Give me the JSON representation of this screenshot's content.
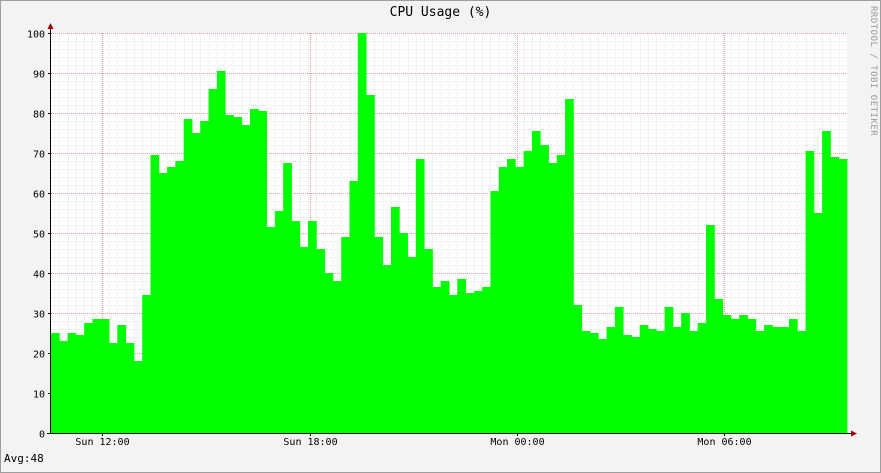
{
  "title": "CPU Usage (%)",
  "watermark": "RRDTOOL / TOBI OETIKER",
  "footer": {
    "avg_text": "Avg:48"
  },
  "colors": {
    "area": "#00ff00",
    "grid_major": "#e8a0a0",
    "grid_minor": "#e6e6e6",
    "background": "#ffffff",
    "canvas": "#f3f3f3",
    "axis": "#000000",
    "arrow": "#a00000"
  },
  "chart_data": {
    "type": "area",
    "title": "CPU Usage (%)",
    "xlabel": "",
    "ylabel": "",
    "ylim": [
      0,
      100
    ],
    "yticks": [
      0,
      10,
      20,
      30,
      40,
      50,
      60,
      70,
      80,
      90,
      100
    ],
    "xtick_labels": [
      {
        "label": "Sun 12:00",
        "bucket": 6.2
      },
      {
        "label": "Sun 18:00",
        "bucket": 31.2
      },
      {
        "label": "Mon 00:00",
        "bucket": 56.2
      },
      {
        "label": "Mon 06:00",
        "bucket": 81.2
      }
    ],
    "grid": true,
    "series": [
      {
        "name": "",
        "values": [
          25,
          23,
          25,
          24.5,
          27.5,
          28.5,
          28.5,
          22.5,
          27,
          22.5,
          18,
          34.5,
          69.5,
          65,
          66.5,
          68,
          78.5,
          75,
          78,
          86,
          90.5,
          79.5,
          79,
          77,
          81,
          80.5,
          51.5,
          55.5,
          67.5,
          53,
          46.5,
          53,
          46,
          40,
          38,
          49,
          63,
          100,
          84.5,
          49,
          42,
          56.5,
          50,
          44,
          68.5,
          46,
          36.5,
          38,
          34.5,
          38.5,
          35,
          35.5,
          36.5,
          60.5,
          66.5,
          68.5,
          66.5,
          70.5,
          75.5,
          72,
          67.5,
          69.5,
          83.5,
          32,
          25.5,
          25,
          23.5,
          26.5,
          31.5,
          24.5,
          24,
          27,
          26,
          25.5,
          31.5,
          26.5,
          30,
          25.5,
          27.5,
          52,
          33.5,
          29.5,
          28.5,
          29.5,
          28.5,
          25.5,
          27,
          26.5,
          26.5,
          28.5,
          25.5,
          70.5,
          55,
          75.5,
          69,
          68.5
        ]
      }
    ],
    "summary": {
      "avg": 48
    }
  }
}
